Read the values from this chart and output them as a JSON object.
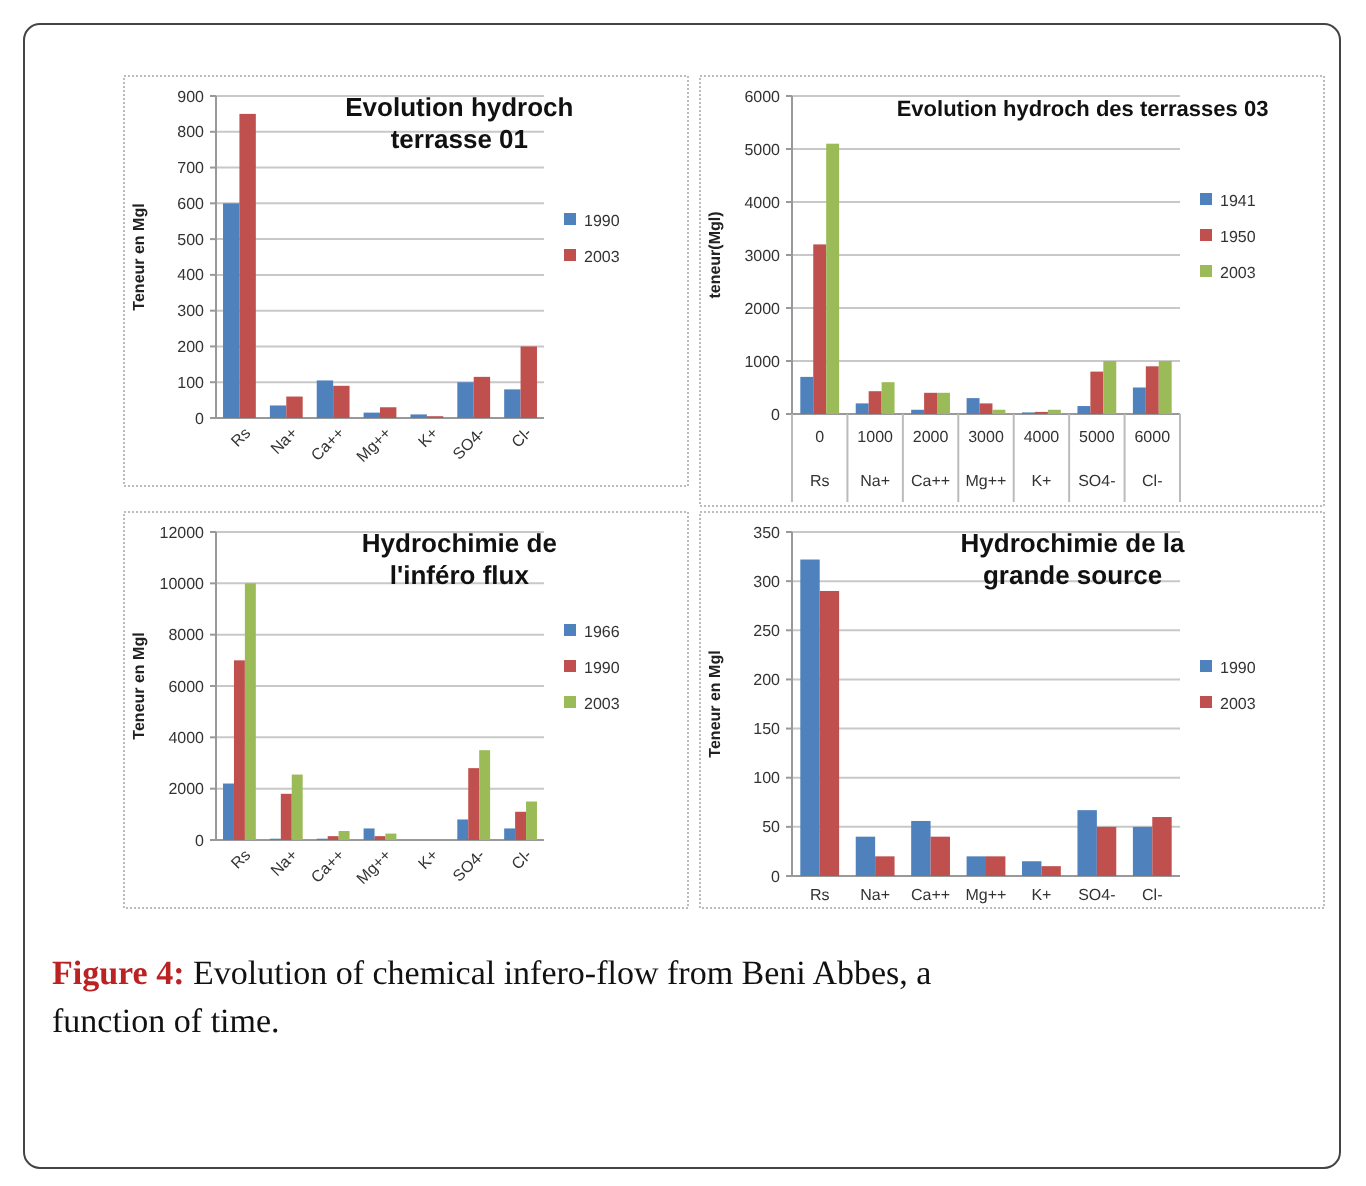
{
  "chart_data": [
    {
      "type": "bar",
      "title": "Evolution hydroch terrasse 01",
      "ylabel": "Teneur en Mgl",
      "categories": [
        "Rs",
        "Na+",
        "Ca++",
        "Mg++",
        "K+",
        "SO4-",
        "Cl-"
      ],
      "ylim": [
        0,
        900
      ],
      "yticks": [
        0,
        100,
        200,
        300,
        400,
        500,
        600,
        700,
        800,
        900
      ],
      "grid": "y",
      "legend": "right",
      "series": [
        {
          "name": "1990",
          "color": "#4f81bd",
          "values": [
            600,
            35,
            105,
            15,
            10,
            100,
            80
          ]
        },
        {
          "name": "2003",
          "color": "#c0504d",
          "values": [
            850,
            60,
            90,
            30,
            5,
            115,
            200
          ]
        }
      ]
    },
    {
      "type": "bar",
      "title": "Evolution hydroch des terrasses 03",
      "ylabel": "teneur(Mgl)",
      "categories": [
        "0\nRs",
        "1000\nNa+",
        "2000\nCa++",
        "3000\nMg++",
        "4000\nK+",
        "5000\nSO4-",
        "6000\nCl-"
      ],
      "ylim": [
        0,
        6000
      ],
      "yticks": [
        0,
        1000,
        2000,
        3000,
        4000,
        5000,
        6000
      ],
      "grid": "y",
      "legend": "right",
      "series": [
        {
          "name": "1941",
          "color": "#4f81bd",
          "values": [
            700,
            200,
            80,
            300,
            30,
            150,
            500
          ]
        },
        {
          "name": "1950",
          "color": "#c0504d",
          "values": [
            3200,
            430,
            400,
            200,
            40,
            800,
            900
          ]
        },
        {
          "name": "2003",
          "color": "#9bbb59",
          "values": [
            5100,
            600,
            400,
            80,
            80,
            1000,
            1000
          ]
        }
      ]
    },
    {
      "type": "bar",
      "title": "Hydrochimie de l'inféro flux",
      "ylabel": "Teneur en Mgl",
      "categories": [
        "Rs",
        "Na+",
        "Ca++",
        "Mg++",
        "K+",
        "SO4-",
        "Cl-"
      ],
      "ylim": [
        0,
        12000
      ],
      "yticks": [
        0,
        2000,
        4000,
        6000,
        8000,
        10000,
        12000
      ],
      "grid": "y",
      "legend": "right",
      "series": [
        {
          "name": "1966",
          "color": "#4f81bd",
          "values": [
            2200,
            50,
            50,
            450,
            0,
            800,
            450
          ]
        },
        {
          "name": "1990",
          "color": "#c0504d",
          "values": [
            7000,
            1800,
            150,
            150,
            0,
            2800,
            1100
          ]
        },
        {
          "name": "2003",
          "color": "#9bbb59",
          "values": [
            10000,
            2550,
            350,
            250,
            0,
            3500,
            1500
          ]
        }
      ]
    },
    {
      "type": "bar",
      "title": "Hydrochimie de la grande source",
      "ylabel": "Teneur en Mgl",
      "categories": [
        "Rs",
        "Na+",
        "Ca++",
        "Mg++",
        "K+",
        "SO4-",
        "Cl-"
      ],
      "ylim": [
        0,
        350
      ],
      "yticks": [
        0,
        50,
        100,
        150,
        200,
        250,
        300,
        350
      ],
      "grid": "y",
      "legend": "right",
      "series": [
        {
          "name": "1990",
          "color": "#4f81bd",
          "values": [
            322,
            40,
            56,
            20,
            15,
            67,
            50
          ]
        },
        {
          "name": "2003",
          "color": "#c0504d",
          "values": [
            290,
            20,
            40,
            20,
            10,
            50,
            60
          ]
        }
      ],
      "annotations": [
        "Figure 4: Evolution of chemical infero-flow from Beni Abbes, a function of time."
      ]
    }
  ]
}
